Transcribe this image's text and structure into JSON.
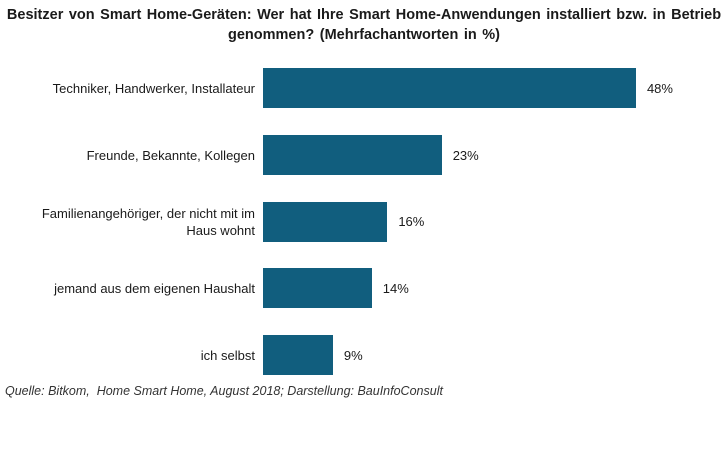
{
  "header": {
    "title_line1": "Besitzer von Smart Home-Geräten: Wer hat Ihre Smart Home-Anwendungen installiert bzw. in Betrieb",
    "title_line2": "genommen? (Mehrfachantworten in %)"
  },
  "footer": {
    "source": "Quelle: Bitkom,  Home Smart Home, August 2018; Darstellung: BauInfoConsult"
  },
  "colors": {
    "bar": "#115E7E",
    "title_text": "#1a1a1a",
    "label_text": "#1a1a1a",
    "source_text": "#333333",
    "background": "#ffffff"
  },
  "chart_data": {
    "type": "bar",
    "orientation": "horizontal",
    "title": "Besitzer von Smart Home-Geräten: Wer hat Ihre Smart Home-Anwendungen installiert bzw. in Betrieb genommen? (Mehrfachantworten in %)",
    "categories": [
      "Techniker, Handwerker, Installateur",
      "Freunde, Bekannte, Kollegen",
      "Familienangehöriger, der nicht mit im Haus wohnt",
      "jemand aus dem eigenen Haushalt",
      "ich selbst"
    ],
    "values": [
      48,
      23,
      16,
      14,
      9
    ],
    "value_labels": [
      "48%",
      "23%",
      "16%",
      "14%",
      "9%"
    ],
    "unit": "%",
    "xlim": [
      0,
      60
    ],
    "grid": false,
    "legend": false,
    "axis_lines": false,
    "bar_color": "#115E7E",
    "source": "Quelle: Bitkom,  Home Smart Home, August 2018; Darstellung: BauInfoConsult"
  }
}
